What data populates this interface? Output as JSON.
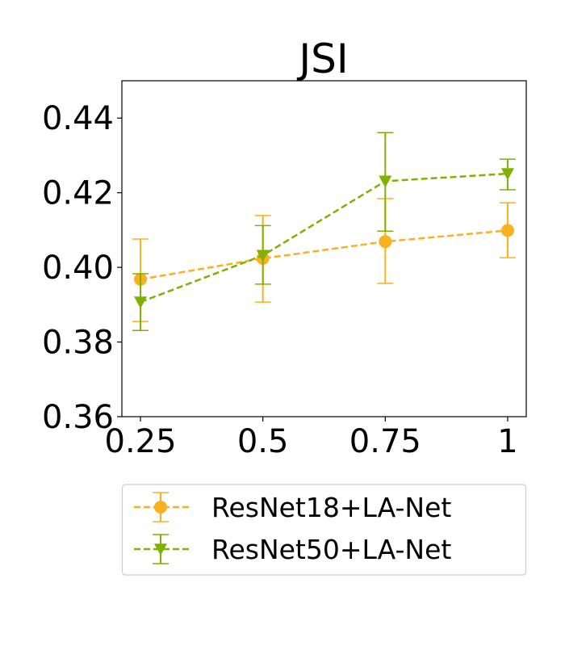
{
  "chart_data": {
    "type": "line",
    "title": "JSI",
    "xlabel": "",
    "ylabel": "",
    "x": [
      0.25,
      0.5,
      0.75,
      1
    ],
    "x_tick_labels": [
      "0.25",
      "0.5",
      "0.75",
      "1"
    ],
    "y_ticks": [
      0.36,
      0.38,
      0.4,
      0.42,
      0.44
    ],
    "y_tick_labels": [
      "0.36",
      "0.38",
      "0.40",
      "0.42",
      "0.44"
    ],
    "xlim": [
      0.212,
      1.038
    ],
    "ylim": [
      0.36,
      0.45
    ],
    "grid": false,
    "legend_placement": "below",
    "series": [
      {
        "name": "ResNet18+LA-Net",
        "color": "#f9b021",
        "marker": "circle",
        "linestyle": "dashed",
        "values": [
          0.3968,
          0.4024,
          0.4069,
          0.4099
        ],
        "err_low": [
          0.3855,
          0.3907,
          0.3957,
          0.4026
        ],
        "err_high": [
          0.4076,
          0.4139,
          0.4184,
          0.4173
        ]
      },
      {
        "name": "ResNet50+LA-Net",
        "color": "#7fb100",
        "marker": "triangle-down",
        "linestyle": "dashed",
        "values": [
          0.3907,
          0.4032,
          0.4231,
          0.4251
        ],
        "err_low": [
          0.3831,
          0.3955,
          0.4097,
          0.4208
        ],
        "err_high": [
          0.3983,
          0.4112,
          0.4361,
          0.429
        ]
      }
    ]
  }
}
